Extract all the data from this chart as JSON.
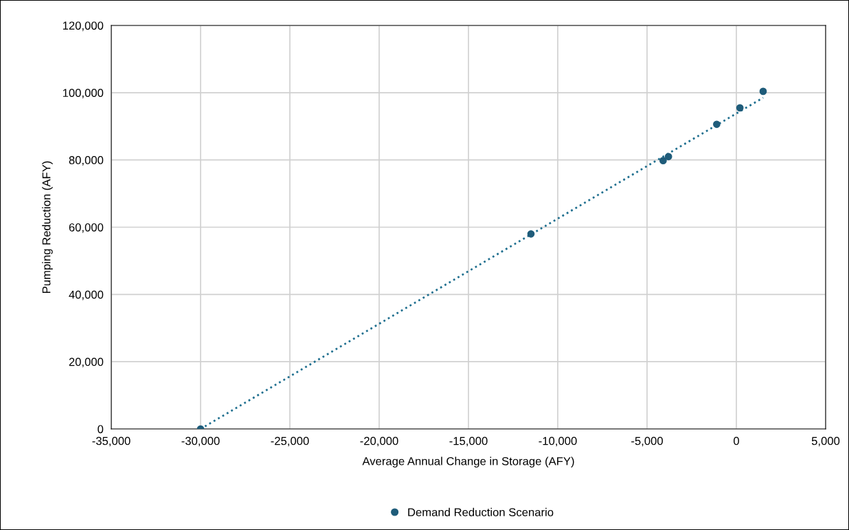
{
  "chart_data": {
    "type": "scatter",
    "xlabel": "Average Annual Change in Storage (AFY)",
    "ylabel": "Pumping Reduction (AFY)",
    "xlim": [
      -35000,
      5000
    ],
    "ylim": [
      0,
      120000
    ],
    "xticks": [
      {
        "value": -35000,
        "label": "-35,000"
      },
      {
        "value": -30000,
        "label": "-30,000"
      },
      {
        "value": -25000,
        "label": "-25,000"
      },
      {
        "value": -20000,
        "label": "-20,000"
      },
      {
        "value": -15000,
        "label": "-15,000"
      },
      {
        "value": -10000,
        "label": "-10,000"
      },
      {
        "value": -5000,
        "label": "-5,000"
      },
      {
        "value": 0,
        "label": "0"
      },
      {
        "value": 5000,
        "label": "5,000"
      }
    ],
    "yticks": [
      {
        "value": 0,
        "label": "0"
      },
      {
        "value": 20000,
        "label": "20,000"
      },
      {
        "value": 40000,
        "label": "40,000"
      },
      {
        "value": 60000,
        "label": "60,000"
      },
      {
        "value": 80000,
        "label": "80,000"
      },
      {
        "value": 100000,
        "label": "100,000"
      },
      {
        "value": 120000,
        "label": "120,000"
      }
    ],
    "grid": true,
    "legend": "bottom",
    "series": [
      {
        "name": "Demand Reduction Scenario",
        "marker": "circle",
        "color": "#1f5c7a",
        "x": [
          -30000,
          -11500,
          -4100,
          -3800,
          -1100,
          200,
          1500
        ],
        "values": [
          0,
          58000,
          79800,
          81000,
          90600,
          95500,
          100400
        ]
      },
      {
        "type": "line",
        "line_style": "dotted",
        "color": "#1f6f8f",
        "x": [
          -30000,
          1500
        ],
        "values": [
          0,
          98500
        ]
      }
    ]
  }
}
